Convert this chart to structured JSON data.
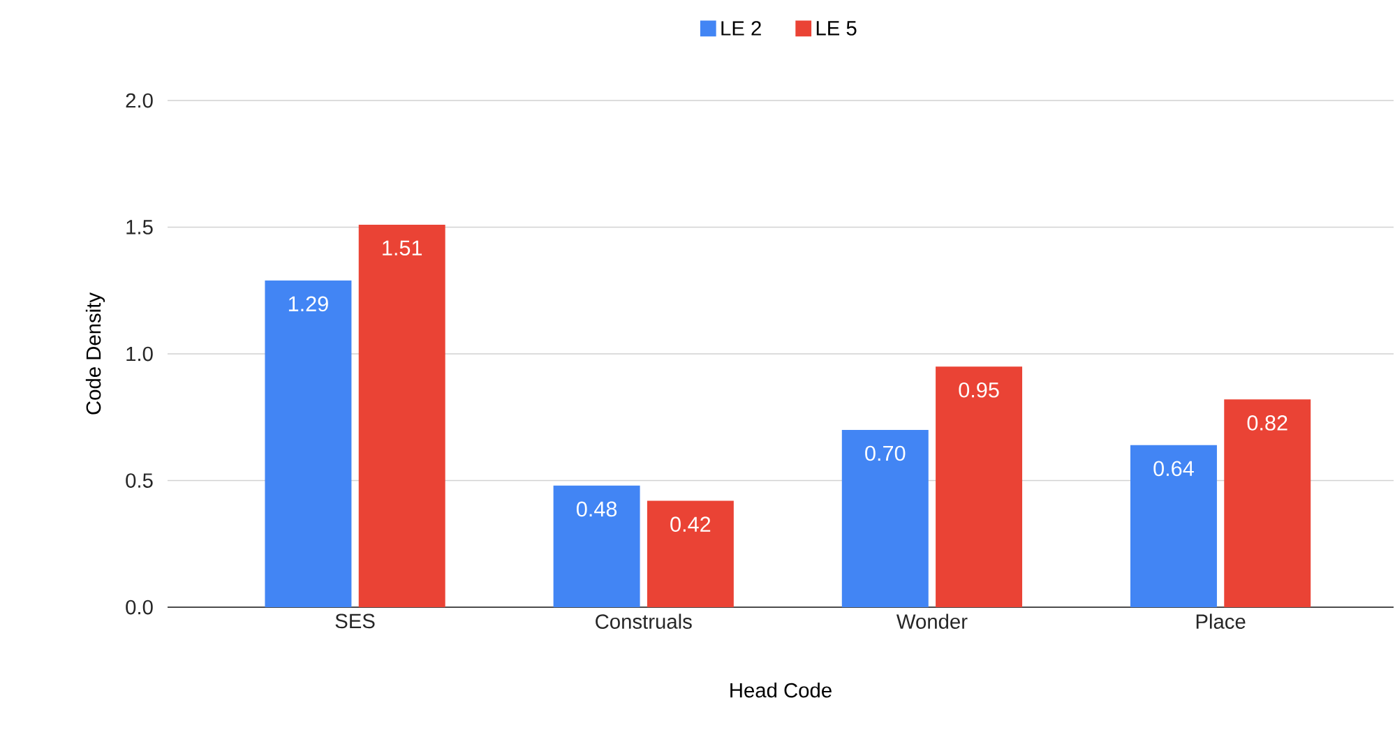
{
  "chart_data": {
    "type": "bar",
    "xlabel": "Head Code",
    "ylabel": "Code Density",
    "categories": [
      "SES",
      "Construals",
      "Wonder",
      "Place"
    ],
    "series": [
      {
        "name": "LE 2",
        "color": "#4285f4",
        "values": [
          1.29,
          0.48,
          0.7,
          0.64
        ],
        "value_labels": [
          "1.29",
          "0.48",
          "0.70",
          "0.64"
        ]
      },
      {
        "name": "LE 5",
        "color": "#ea4335",
        "values": [
          1.51,
          0.42,
          0.95,
          0.82
        ],
        "value_labels": [
          "1.51",
          "0.42",
          "0.95",
          "0.82"
        ]
      }
    ],
    "ylim": [
      0,
      2.0
    ],
    "yticks": [
      {
        "value": 0,
        "label": "0.0"
      },
      {
        "value": 0.5,
        "label": "0.5"
      },
      {
        "value": 1.0,
        "label": "1.0"
      },
      {
        "value": 1.5,
        "label": "1.5"
      },
      {
        "value": 2.0,
        "label": "2.0"
      }
    ],
    "grid": "y",
    "legend": "top"
  }
}
